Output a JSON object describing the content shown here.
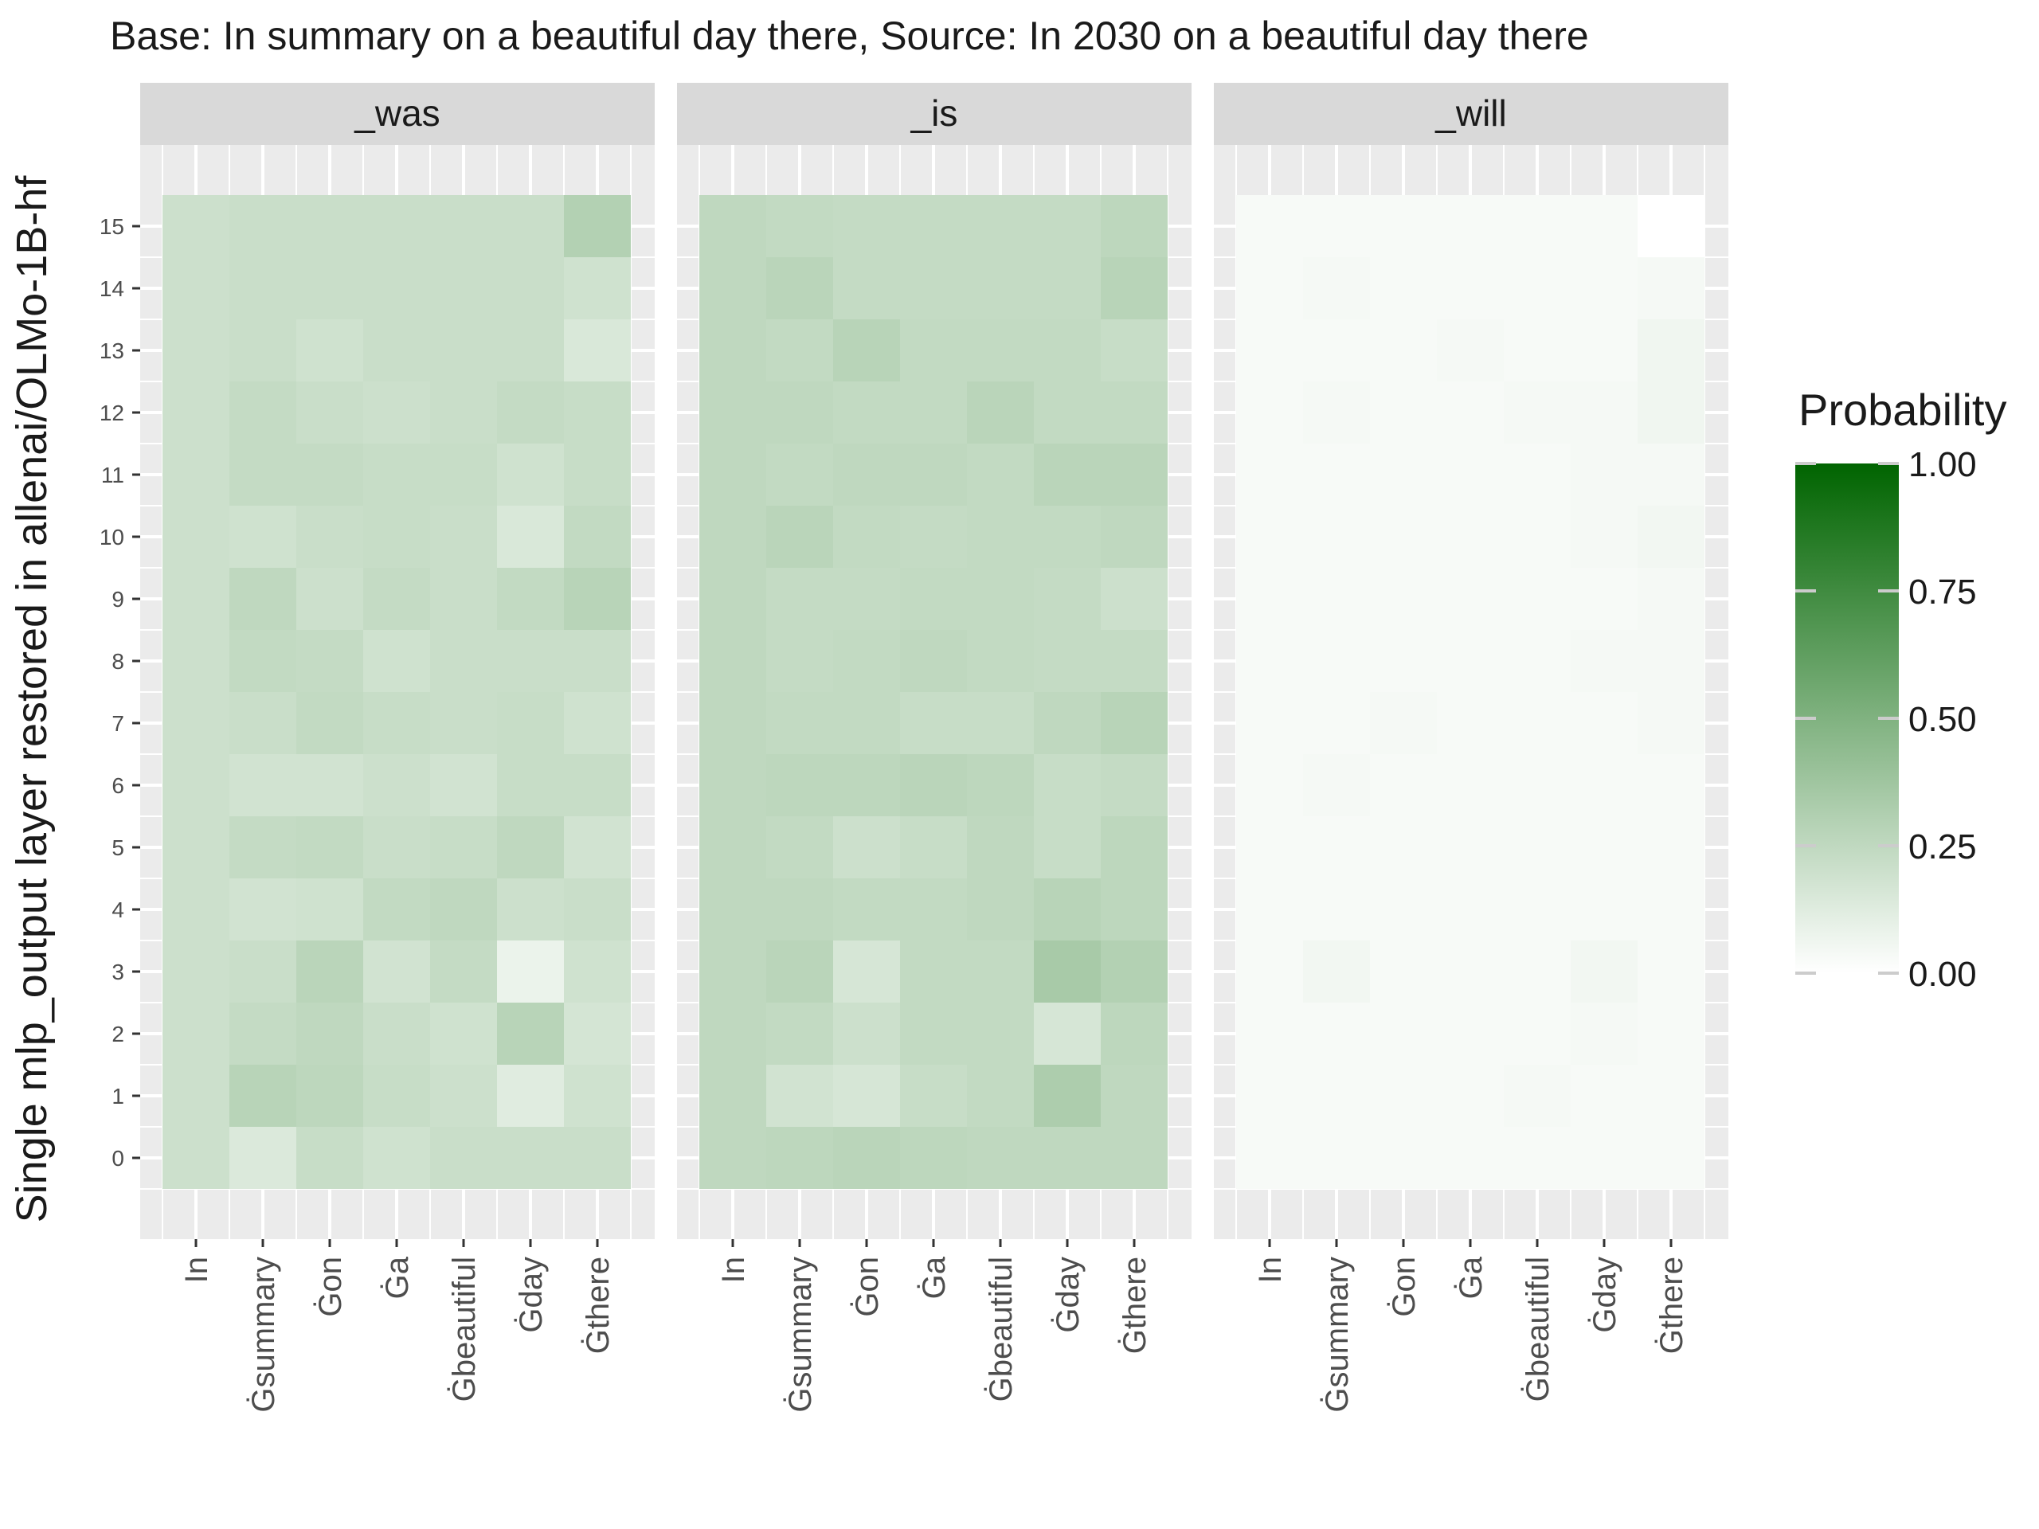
{
  "chart_data": {
    "type": "heatmap",
    "title": "Base: In summary on a beautiful day there, Source: In 2030 on a beautiful day there",
    "ylabel": "Single mlp_output layer restored in allenai/OLMo-1B-hf",
    "xlabel": "",
    "panels": [
      "_was",
      "_is",
      "_will"
    ],
    "x": [
      "In",
      "Ġsummary",
      "Ġon",
      "Ġa",
      "Ġbeautiful",
      "Ġday",
      "Ġthere"
    ],
    "y": [
      "0",
      "1",
      "2",
      "3",
      "4",
      "5",
      "6",
      "7",
      "8",
      "9",
      "10",
      "11",
      "12",
      "13",
      "14",
      "15"
    ],
    "values_note_rows": "row index = layer 0..15, column = token",
    "values": {
      "_was": [
        [
          0.2,
          0.14,
          0.22,
          0.19,
          0.21,
          0.21,
          0.21
        ],
        [
          0.2,
          0.28,
          0.26,
          0.22,
          0.2,
          0.12,
          0.19
        ],
        [
          0.2,
          0.23,
          0.25,
          0.21,
          0.19,
          0.28,
          0.17
        ],
        [
          0.2,
          0.21,
          0.27,
          0.18,
          0.23,
          0.08,
          0.19
        ],
        [
          0.2,
          0.18,
          0.19,
          0.24,
          0.25,
          0.2,
          0.21
        ],
        [
          0.2,
          0.23,
          0.24,
          0.21,
          0.22,
          0.25,
          0.18
        ],
        [
          0.2,
          0.18,
          0.18,
          0.2,
          0.18,
          0.22,
          0.22
        ],
        [
          0.2,
          0.21,
          0.24,
          0.22,
          0.21,
          0.22,
          0.19
        ],
        [
          0.2,
          0.24,
          0.23,
          0.19,
          0.21,
          0.21,
          0.21
        ],
        [
          0.2,
          0.25,
          0.2,
          0.23,
          0.21,
          0.24,
          0.28
        ],
        [
          0.2,
          0.19,
          0.21,
          0.22,
          0.21,
          0.15,
          0.24
        ],
        [
          0.2,
          0.23,
          0.23,
          0.22,
          0.22,
          0.19,
          0.22
        ],
        [
          0.2,
          0.23,
          0.21,
          0.2,
          0.21,
          0.23,
          0.22
        ],
        [
          0.2,
          0.21,
          0.19,
          0.21,
          0.21,
          0.21,
          0.15
        ],
        [
          0.2,
          0.21,
          0.21,
          0.21,
          0.21,
          0.21,
          0.19
        ],
        [
          0.2,
          0.21,
          0.21,
          0.21,
          0.21,
          0.21,
          0.3
        ]
      ],
      "_is": [
        [
          0.25,
          0.26,
          0.27,
          0.26,
          0.25,
          0.25,
          0.25
        ],
        [
          0.25,
          0.18,
          0.16,
          0.22,
          0.24,
          0.32,
          0.25
        ],
        [
          0.25,
          0.24,
          0.2,
          0.24,
          0.24,
          0.16,
          0.26
        ],
        [
          0.25,
          0.27,
          0.16,
          0.24,
          0.24,
          0.34,
          0.3
        ],
        [
          0.25,
          0.25,
          0.24,
          0.24,
          0.25,
          0.28,
          0.26
        ],
        [
          0.25,
          0.24,
          0.2,
          0.22,
          0.25,
          0.22,
          0.26
        ],
        [
          0.25,
          0.26,
          0.26,
          0.27,
          0.26,
          0.22,
          0.23
        ],
        [
          0.25,
          0.24,
          0.24,
          0.22,
          0.22,
          0.25,
          0.28
        ],
        [
          0.25,
          0.23,
          0.24,
          0.25,
          0.24,
          0.23,
          0.23
        ],
        [
          0.25,
          0.23,
          0.23,
          0.24,
          0.24,
          0.23,
          0.2
        ],
        [
          0.25,
          0.27,
          0.24,
          0.23,
          0.24,
          0.24,
          0.25
        ],
        [
          0.25,
          0.24,
          0.25,
          0.25,
          0.24,
          0.27,
          0.27
        ],
        [
          0.25,
          0.25,
          0.24,
          0.24,
          0.27,
          0.24,
          0.24
        ],
        [
          0.25,
          0.24,
          0.28,
          0.24,
          0.24,
          0.24,
          0.22
        ],
        [
          0.25,
          0.27,
          0.23,
          0.23,
          0.23,
          0.23,
          0.28
        ],
        [
          0.25,
          0.24,
          0.23,
          0.23,
          0.23,
          0.23,
          0.26
        ]
      ],
      "_will": [
        [
          0.03,
          0.03,
          0.03,
          0.03,
          0.03,
          0.03,
          0.03
        ],
        [
          0.03,
          0.03,
          0.03,
          0.03,
          0.04,
          0.03,
          0.03
        ],
        [
          0.03,
          0.03,
          0.03,
          0.03,
          0.03,
          0.04,
          0.03
        ],
        [
          0.03,
          0.05,
          0.03,
          0.03,
          0.03,
          0.05,
          0.03
        ],
        [
          0.03,
          0.03,
          0.03,
          0.03,
          0.03,
          0.03,
          0.03
        ],
        [
          0.03,
          0.03,
          0.03,
          0.03,
          0.03,
          0.03,
          0.03
        ],
        [
          0.03,
          0.04,
          0.03,
          0.03,
          0.03,
          0.03,
          0.03
        ],
        [
          0.03,
          0.03,
          0.04,
          0.03,
          0.03,
          0.03,
          0.04
        ],
        [
          0.03,
          0.03,
          0.03,
          0.03,
          0.03,
          0.04,
          0.04
        ],
        [
          0.03,
          0.03,
          0.03,
          0.03,
          0.03,
          0.03,
          0.04
        ],
        [
          0.03,
          0.03,
          0.03,
          0.03,
          0.03,
          0.04,
          0.05
        ],
        [
          0.03,
          0.03,
          0.03,
          0.03,
          0.03,
          0.04,
          0.04
        ],
        [
          0.03,
          0.04,
          0.03,
          0.03,
          0.04,
          0.04,
          0.06
        ],
        [
          0.03,
          0.03,
          0.03,
          0.04,
          0.03,
          0.03,
          0.06
        ],
        [
          0.03,
          0.04,
          0.03,
          0.03,
          0.03,
          0.03,
          0.04
        ],
        [
          0.03,
          0.03,
          0.03,
          0.03,
          0.03,
          0.03,
          0.0
        ]
      ]
    },
    "legend": {
      "title": "Probability",
      "breaks": [
        "0.00",
        "0.25",
        "0.50",
        "0.75",
        "1.00"
      ],
      "range": [
        0,
        1
      ],
      "low_color": "#ffffff",
      "high_color": "#006400",
      "placement": "right"
    },
    "panel_strip_color": "#d9d9d9",
    "panel_background_color": "#ebebeb"
  }
}
